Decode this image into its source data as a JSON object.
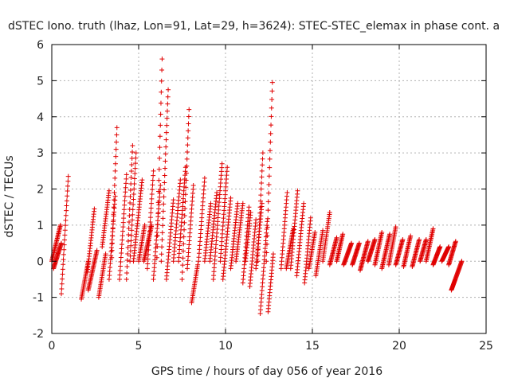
{
  "chart_data": {
    "type": "scatter",
    "title": "dSTEC Iono. truth (lhaz, Lon=91, Lat=29, h=3624): STEC-STEC_elemax in phase cont. a",
    "xlabel": "GPS time / hours of day 056 of year 2016",
    "ylabel": "dSTEC  / TECUs",
    "xlim": [
      0,
      25
    ],
    "ylim": [
      -2,
      6
    ],
    "xticks": [
      0,
      5,
      10,
      15,
      20,
      25
    ],
    "yticks": [
      -2,
      -1,
      0,
      1,
      2,
      3,
      4,
      5,
      6
    ],
    "grid": true,
    "marker": "+",
    "series": [
      {
        "color": "#e00000",
        "arcs": [
          {
            "x": [
              0.0,
              0.5
            ],
            "y": [
              0.0,
              1.0
            ]
          },
          {
            "x": [
              0.1,
              0.55
            ],
            "y": [
              -0.2,
              0.5
            ]
          },
          {
            "x": [
              0.55,
              0.95
            ],
            "y": [
              -0.9,
              2.35
            ]
          },
          {
            "x": [
              1.7,
              2.1
            ],
            "y": [
              -1.05,
              0.0
            ]
          },
          {
            "x": [
              2.05,
              2.45
            ],
            "y": [
              -0.3,
              1.45
            ]
          },
          {
            "x": [
              2.1,
              2.6
            ],
            "y": [
              -0.8,
              0.3
            ]
          },
          {
            "x": [
              2.7,
              3.1
            ],
            "y": [
              -1.0,
              0.2
            ]
          },
          {
            "x": [
              2.9,
              3.3
            ],
            "y": [
              0.4,
              1.95
            ]
          },
          {
            "x": [
              3.3,
              3.65
            ],
            "y": [
              -0.5,
              1.8
            ]
          },
          {
            "x": [
              3.45,
              3.75
            ],
            "y": [
              0.1,
              3.7
            ]
          },
          {
            "x": [
              3.9,
              4.3
            ],
            "y": [
              -0.5,
              2.4
            ]
          },
          {
            "x": [
              4.3,
              4.65
            ],
            "y": [
              -0.5,
              3.2
            ]
          },
          {
            "x": [
              4.5,
              4.85
            ],
            "y": [
              0.0,
              3.0
            ]
          },
          {
            "x": [
              4.7,
              5.2
            ],
            "y": [
              0.0,
              2.25
            ]
          },
          {
            "x": [
              5.0,
              5.35
            ],
            "y": [
              0.0,
              1.0
            ]
          },
          {
            "x": [
              5.3,
              5.75
            ],
            "y": [
              0.0,
              1.0
            ]
          },
          {
            "x": [
              5.5,
              5.85
            ],
            "y": [
              -0.2,
              2.5
            ]
          },
          {
            "x": [
              5.85,
              6.25
            ],
            "y": [
              -0.5,
              2.1
            ]
          },
          {
            "x": [
              6.05,
              6.35
            ],
            "y": [
              0.1,
              5.6
            ]
          },
          {
            "x": [
              6.3,
              6.7
            ],
            "y": [
              0.0,
              4.75
            ]
          },
          {
            "x": [
              6.6,
              7.0
            ],
            "y": [
              -0.5,
              1.7
            ]
          },
          {
            "x": [
              7.0,
              7.4
            ],
            "y": [
              0.0,
              2.25
            ]
          },
          {
            "x": [
              7.3,
              7.7
            ],
            "y": [
              0.0,
              2.6
            ]
          },
          {
            "x": [
              7.5,
              7.9
            ],
            "y": [
              -0.5,
              4.2
            ]
          },
          {
            "x": [
              7.8,
              8.15
            ],
            "y": [
              -0.2,
              2.1
            ]
          },
          {
            "x": [
              8.05,
              8.4
            ],
            "y": [
              -1.15,
              -0.1
            ]
          },
          {
            "x": [
              8.45,
              8.8
            ],
            "y": [
              0.0,
              2.3
            ]
          },
          {
            "x": [
              8.8,
              9.15
            ],
            "y": [
              0.0,
              1.6
            ]
          },
          {
            "x": [
              9.1,
              9.5
            ],
            "y": [
              0.0,
              1.9
            ]
          },
          {
            "x": [
              9.3,
              9.8
            ],
            "y": [
              -0.5,
              2.7
            ]
          },
          {
            "x": [
              9.7,
              10.1
            ],
            "y": [
              0.0,
              2.6
            ]
          },
          {
            "x": [
              9.85,
              10.3
            ],
            "y": [
              -0.5,
              1.75
            ]
          },
          {
            "x": [
              10.3,
              10.7
            ],
            "y": [
              -0.2,
              1.6
            ]
          },
          {
            "x": [
              10.6,
              11.0
            ],
            "y": [
              0.0,
              1.6
            ]
          },
          {
            "x": [
              11.0,
              11.35
            ],
            "y": [
              -0.6,
              1.5
            ]
          },
          {
            "x": [
              11.15,
              11.45
            ],
            "y": [
              0.0,
              1.35
            ]
          },
          {
            "x": [
              11.4,
              11.75
            ],
            "y": [
              -0.7,
              1.15
            ]
          },
          {
            "x": [
              11.75,
              12.1
            ],
            "y": [
              -0.2,
              1.6
            ]
          },
          {
            "x": [
              11.85,
              12.15
            ],
            "y": [
              0.0,
              3.0
            ]
          },
          {
            "x": [
              12.0,
              12.4
            ],
            "y": [
              -1.45,
              1.1
            ]
          },
          {
            "x": [
              12.35,
              12.7
            ],
            "y": [
              0.0,
              4.95
            ]
          },
          {
            "x": [
              12.45,
              12.75
            ],
            "y": [
              -1.4,
              0.2
            ]
          },
          {
            "x": [
              13.2,
              13.55
            ],
            "y": [
              -0.2,
              1.9
            ]
          },
          {
            "x": [
              13.5,
              13.9
            ],
            "y": [
              -0.2,
              0.9
            ]
          },
          {
            "x": [
              13.75,
              14.15
            ],
            "y": [
              -0.2,
              1.95
            ]
          },
          {
            "x": [
              14.1,
              14.5
            ],
            "y": [
              -0.4,
              1.6
            ]
          },
          {
            "x": [
              14.55,
              14.9
            ],
            "y": [
              -0.6,
              1.2
            ]
          },
          {
            "x": [
              14.8,
              15.15
            ],
            "y": [
              -0.2,
              0.8
            ]
          },
          {
            "x": [
              15.2,
              15.6
            ],
            "y": [
              -0.4,
              0.85
            ]
          },
          {
            "x": [
              15.6,
              16.0
            ],
            "y": [
              0.0,
              1.35
            ]
          },
          {
            "x": [
              16.0,
              16.4
            ],
            "y": [
              -0.1,
              0.65
            ]
          },
          {
            "x": [
              16.4,
              16.75
            ],
            "y": [
              0.0,
              0.75
            ]
          },
          {
            "x": [
              16.8,
              17.25
            ],
            "y": [
              -0.1,
              0.5
            ]
          },
          {
            "x": [
              17.3,
              17.7
            ],
            "y": [
              -0.1,
              0.5
            ]
          },
          {
            "x": [
              17.75,
              18.2
            ],
            "y": [
              -0.25,
              0.55
            ]
          },
          {
            "x": [
              18.2,
              18.6
            ],
            "y": [
              0.0,
              0.6
            ]
          },
          {
            "x": [
              18.6,
              19.0
            ],
            "y": [
              -0.1,
              0.8
            ]
          },
          {
            "x": [
              19.0,
              19.45
            ],
            "y": [
              -0.2,
              0.75
            ]
          },
          {
            "x": [
              19.4,
              19.8
            ],
            "y": [
              -0.1,
              0.95
            ]
          },
          {
            "x": [
              19.8,
              20.2
            ],
            "y": [
              -0.1,
              0.6
            ]
          },
          {
            "x": [
              20.25,
              20.65
            ],
            "y": [
              -0.15,
              0.7
            ]
          },
          {
            "x": [
              20.75,
              21.15
            ],
            "y": [
              -0.15,
              0.6
            ]
          },
          {
            "x": [
              21.2,
              21.55
            ],
            "y": [
              0.0,
              0.6
            ]
          },
          {
            "x": [
              21.55,
              21.95
            ],
            "y": [
              0.0,
              0.9
            ]
          },
          {
            "x": [
              21.95,
              22.35
            ],
            "y": [
              -0.1,
              0.4
            ]
          },
          {
            "x": [
              22.45,
              22.85
            ],
            "y": [
              0.0,
              0.4
            ]
          },
          {
            "x": [
              22.85,
              23.25
            ],
            "y": [
              -0.1,
              0.55
            ]
          },
          {
            "x": [
              23.0,
              23.6
            ],
            "y": [
              -0.8,
              0.0
            ]
          }
        ]
      }
    ]
  }
}
